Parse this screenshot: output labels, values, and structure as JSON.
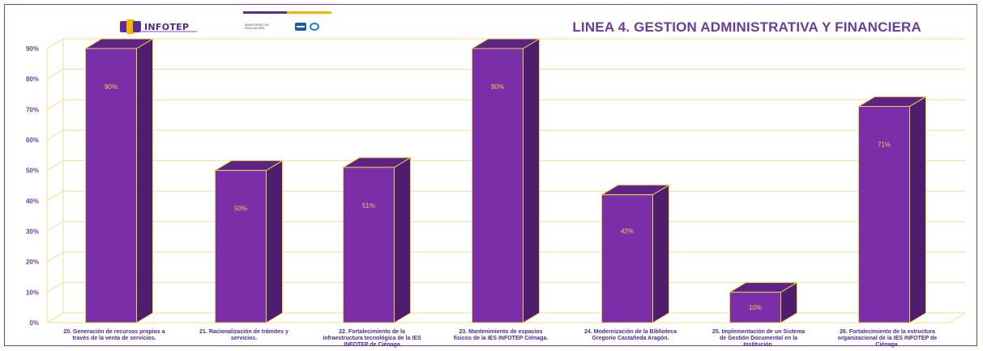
{
  "header": {
    "logo_text": "INFOTEP",
    "gov_text": "MINISTERIO DE EDUCACIÓN",
    "title": "LINEA 4. GESTION ADMINISTRATIVA Y FINANCIERA"
  },
  "colors": {
    "bar_front": "#7a2fa8",
    "bar_side": "#4e1d6e",
    "bar_top": "#5e2385",
    "bar_edge": "#e8d44d",
    "grid": "#f0e08a",
    "label": "#f4d03f",
    "axis_text": "#7a3aa8"
  },
  "chart_data": {
    "type": "bar",
    "title": "LINEA 4. GESTION ADMINISTRATIVA Y FINANCIERA",
    "ylim": [
      0,
      90
    ],
    "yticks": [
      "0%",
      "10%",
      "20%",
      "30%",
      "40%",
      "50%",
      "60%",
      "70%",
      "80%",
      "90%"
    ],
    "grid": true,
    "categories": [
      [
        "20. Generación de recursos propios a",
        "través de la venta de servicios."
      ],
      [
        "21. Racionalización de trámites y",
        "servicios."
      ],
      [
        "22. Fortalecimiento de la",
        "infraestructura tecnológica de la IES",
        "INFOTEP de Ciénaga"
      ],
      [
        "23. Mantenimiento de espacios",
        "físicos de la IES INFOTEP Ciénaga."
      ],
      [
        "24. Modernización de la Biblioteca",
        "Gregorio Castañeda Aragón."
      ],
      [
        "25. Implementación de un Sistema",
        "de Gestión Documental en la",
        "Institución."
      ],
      [
        "26. Fortalecimiento de la estructura",
        "organizacional de la IES INFOTEP de",
        "Ciénaga."
      ]
    ],
    "values": [
      90,
      50,
      51,
      90,
      42,
      10,
      71
    ],
    "data_labels": [
      "90%",
      "50%",
      "51%",
      "90%",
      "42%",
      "10%",
      "71%"
    ]
  }
}
